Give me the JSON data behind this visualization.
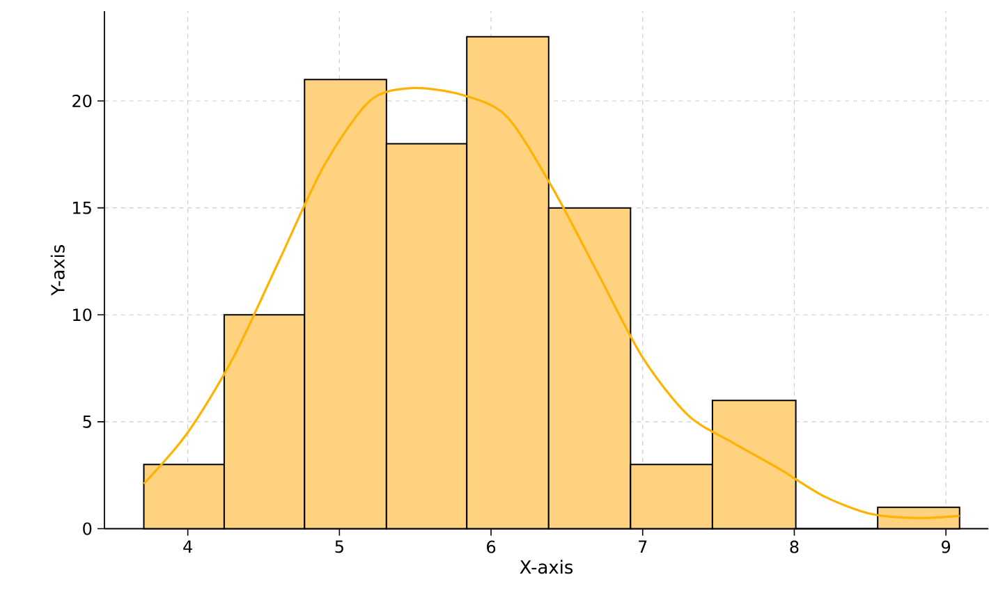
{
  "chart_data": {
    "type": "histogram",
    "xlabel": "X-axis",
    "ylabel": "Y-axis",
    "series": [
      {
        "bins": [
          3.71,
          4.24,
          4.77,
          5.31,
          5.84,
          6.38,
          6.92,
          7.46,
          8.01,
          8.55,
          9.09
        ],
        "values": [
          3,
          10,
          21,
          18,
          23,
          15,
          3,
          6,
          0,
          1
        ],
        "color": "#fed27f"
      },
      {
        "type": "line",
        "x": [
          3.71,
          4.0,
          4.3,
          4.6,
          4.9,
          5.2,
          5.47,
          5.8,
          6.1,
          6.4,
          6.7,
          7.0,
          7.3,
          7.6,
          7.9,
          8.2,
          8.5,
          8.8,
          9.09
        ],
        "values": [
          2.1,
          4.5,
          8,
          12.5,
          17,
          20,
          20.6,
          20.3,
          19.3,
          16,
          12,
          8,
          5.3,
          4.0,
          2.8,
          1.5,
          0.7,
          0.5,
          0.6
        ],
        "color": "#ffb300"
      }
    ],
    "xlim": [
      3.45,
      9.28
    ],
    "ylim": [
      0,
      24.2
    ],
    "xticks": [
      4,
      5,
      6,
      7,
      8,
      9
    ],
    "yticks": [
      0,
      5,
      10,
      15,
      20
    ],
    "grid": true
  }
}
